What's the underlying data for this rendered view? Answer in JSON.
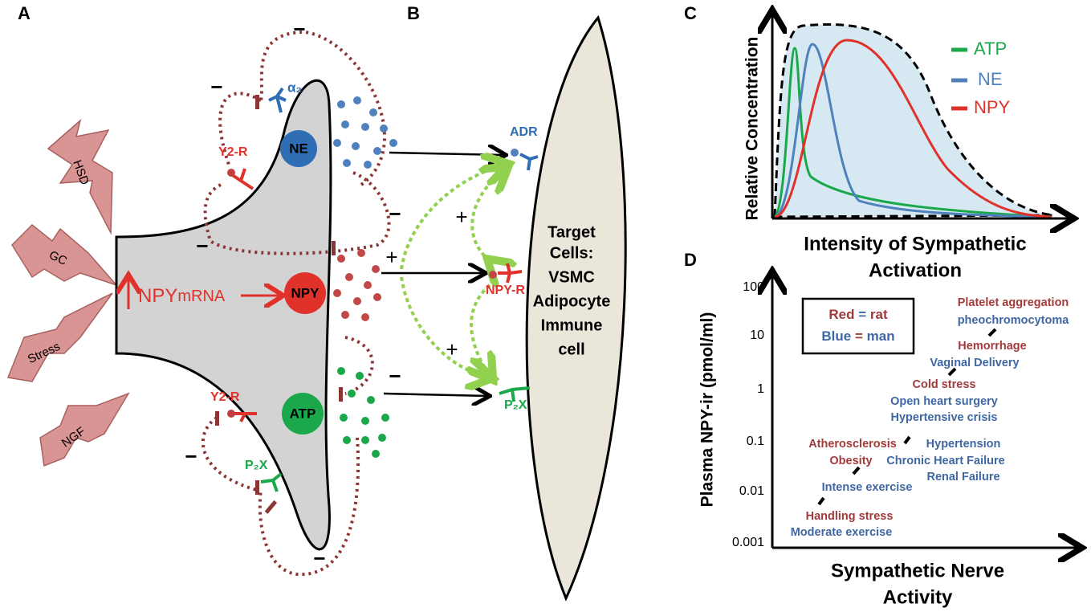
{
  "panel_labels": [
    "A",
    "B",
    "C",
    "D"
  ],
  "panel_a": {
    "stressors": [
      "HSD",
      "GC",
      "Stress",
      "NGF"
    ],
    "vesicles": [
      "NE",
      "NPY",
      "ATP"
    ],
    "mrna": [
      "NPY",
      "mRNA"
    ],
    "receptors": [
      "α₂",
      "Y2-R",
      "Y2-R",
      "P₂X"
    ],
    "signs": [
      "−",
      "−",
      "−",
      "−",
      "−",
      "−",
      "−"
    ]
  },
  "panel_b": {
    "receptors": [
      "ADR",
      "NPY-R",
      "P₂X"
    ],
    "signs": [
      "+",
      "+",
      "+"
    ],
    "target": [
      "Target",
      "Cells:",
      "VSMC",
      "Adipocyte",
      "Immune",
      "cell"
    ]
  },
  "panel_c": {
    "y_label": "Relative Concentration",
    "x_label": [
      "Intensity of Sympathetic",
      "Activation"
    ],
    "legend": [
      {
        "name": "ATP",
        "color": "#1aa84a"
      },
      {
        "name": "NE",
        "color": "#4f81bd"
      },
      {
        "name": "NPY",
        "color": "#e0322a"
      }
    ]
  },
  "panel_d": {
    "y_label": "Plasma NPY-ir (pmol/ml)",
    "x_label": [
      "Sympathetic Nerve",
      "Activity"
    ],
    "yticks": [
      "100",
      "10",
      "1",
      "0.1",
      "0.01",
      "0.001"
    ],
    "legend": [
      [
        "Red",
        "=",
        "rat"
      ],
      [
        "Blue",
        "=",
        "man"
      ]
    ],
    "items": [
      {
        "text": "Platelet aggregation",
        "color": "#a33a3a"
      },
      {
        "text": "pheochromocytoma",
        "color": "#3f67a3"
      },
      {
        "text": "Hemorrhage",
        "color": "#a33a3a"
      },
      {
        "text": "Vaginal Delivery",
        "color": "#3f67a3"
      },
      {
        "text": "Cold stress",
        "color": "#a33a3a"
      },
      {
        "text": "Open heart surgery",
        "color": "#3f67a3"
      },
      {
        "text": "Hypertensive crisis",
        "color": "#3f67a3"
      },
      {
        "text": "Atherosclerosis",
        "color": "#a33a3a"
      },
      {
        "text": "Hypertension",
        "color": "#3f67a3"
      },
      {
        "text": "Obesity",
        "color": "#a33a3a"
      },
      {
        "text": "Chronic Heart Failure",
        "color": "#3f67a3"
      },
      {
        "text": "Renal Failure",
        "color": "#3f67a3"
      },
      {
        "text": "Intense exercise",
        "color": "#3f67a3"
      },
      {
        "text": "Handling stress",
        "color": "#a33a3a"
      },
      {
        "text": "Moderate exercise",
        "color": "#3f67a3"
      }
    ]
  }
}
